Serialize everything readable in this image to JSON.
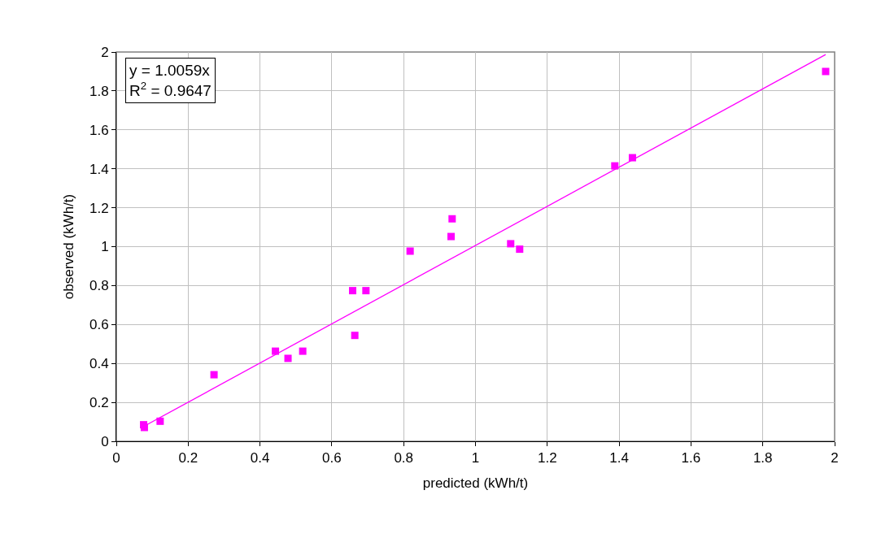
{
  "chart_data": {
    "type": "scatter",
    "xlabel": "predicted (kWh/t)",
    "ylabel": "observed (kWh/t)",
    "annotations": [
      "y = 1.0059x",
      "R$^{2}$ = 0.9647"
    ],
    "series": [
      {
        "color": "#ff00ff",
        "marker": "square",
        "x": [
          0.076,
          0.078,
          0.122,
          0.272,
          0.443,
          0.478,
          0.519,
          0.658,
          0.695,
          0.664,
          0.818,
          0.935,
          0.932,
          1.098,
          1.123,
          1.388,
          1.437,
          1.975
        ],
        "values": [
          0.085,
          0.071,
          0.103,
          0.342,
          0.463,
          0.426,
          0.463,
          0.774,
          0.774,
          0.544,
          0.977,
          1.143,
          1.052,
          1.015,
          0.987,
          1.415,
          1.457,
          1.9
        ]
      },
      {
        "type": "line",
        "color": "#ff00ff",
        "marker": "none",
        "line_style": "solid",
        "x": [
          0.076,
          1.975
        ],
        "values": [
          0.076,
          1.987
        ]
      }
    ],
    "xlim": [
      0,
      2
    ],
    "xticks": [
      0,
      0.2,
      0.4,
      0.6,
      0.8,
      1,
      1.2,
      1.4,
      1.6,
      1.8,
      2
    ],
    "ylim": [
      0,
      2
    ],
    "yticks": [
      0,
      0.2,
      0.4,
      0.6,
      0.8,
      1,
      1.2,
      1.4,
      1.6,
      1.8,
      2
    ],
    "grid": true
  }
}
